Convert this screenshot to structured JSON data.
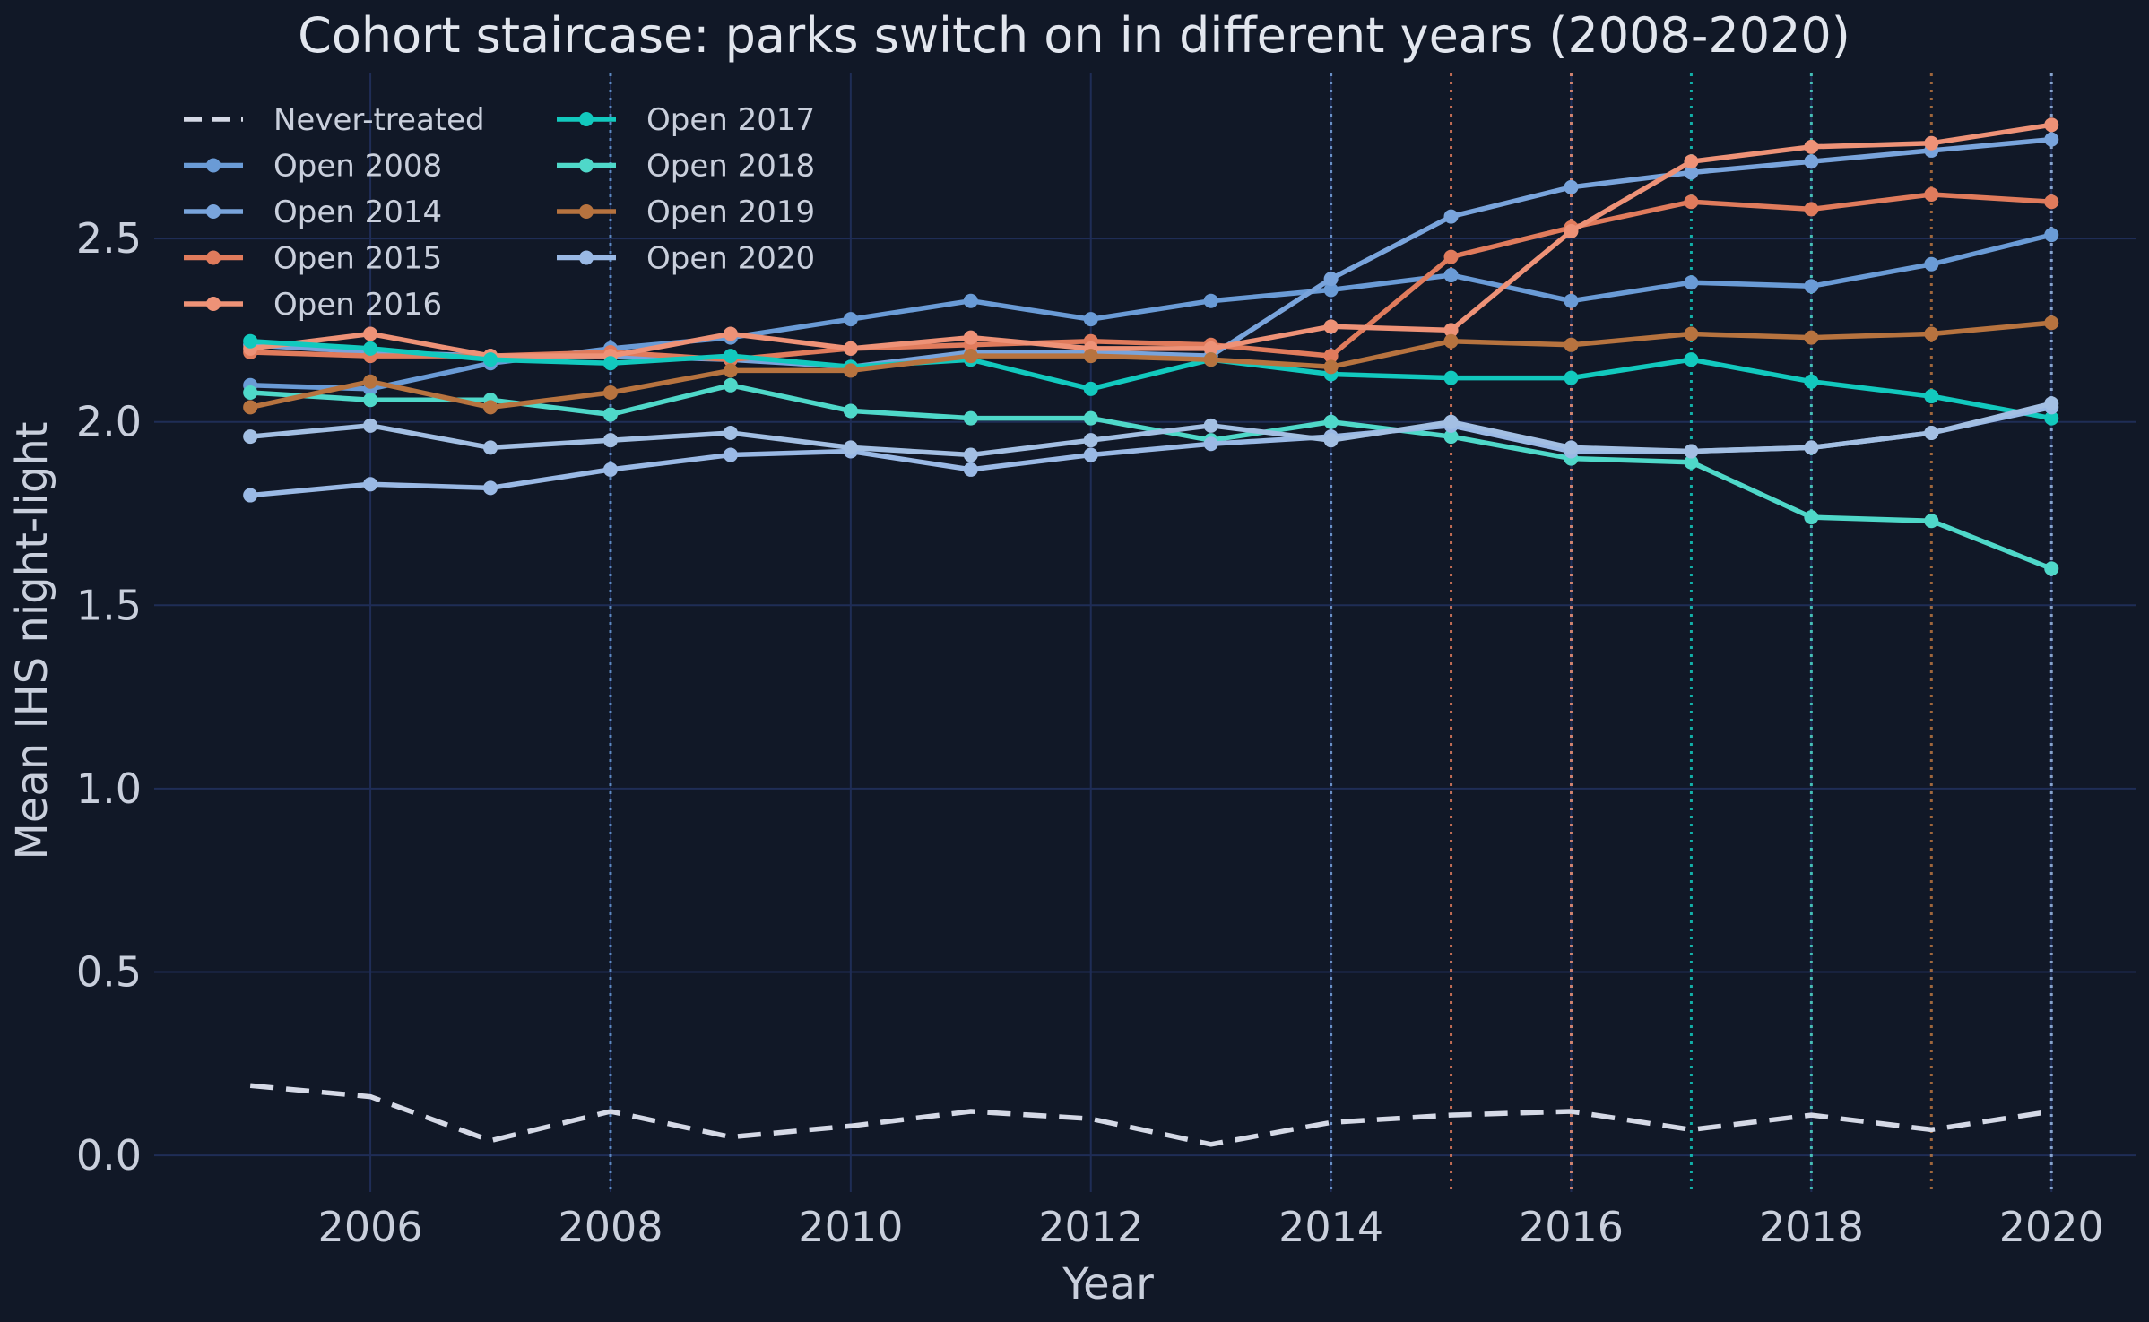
{
  "chart_data": {
    "type": "line",
    "title": "Cohort staircase: parks switch on in different years (2008-2020)",
    "xlabel": "Year",
    "ylabel": "Mean IHS night-light",
    "xlim": [
      2004.2,
      2020.7
    ],
    "ylim": [
      -0.1,
      2.95
    ],
    "xticks": [
      "2006",
      "2008",
      "2010",
      "2012",
      "2014",
      "2016",
      "2018",
      "2020"
    ],
    "yticks": [
      "0.0",
      "0.5",
      "1.0",
      "1.5",
      "2.0",
      "2.5"
    ],
    "grid": true,
    "legend_position": "top-left",
    "x": [
      2005,
      2006,
      2007,
      2008,
      2009,
      2010,
      2011,
      2012,
      2013,
      2014,
      2015,
      2016,
      2017,
      2018,
      2019,
      2020
    ],
    "series": [
      {
        "name": "Never-treated",
        "color": "#d5d9e6",
        "dashed": true,
        "markers": false,
        "open_year": null,
        "values": [
          0.19,
          0.16,
          0.04,
          0.12,
          0.05,
          0.08,
          0.12,
          0.1,
          0.03,
          0.09,
          0.11,
          0.12,
          0.07,
          0.11,
          0.07,
          0.12
        ]
      },
      {
        "name": "Open 2008",
        "color": "#6a9bd6",
        "dashed": false,
        "markers": true,
        "open_year": 2008,
        "values": [
          2.1,
          2.09,
          2.16,
          2.2,
          2.23,
          2.28,
          2.33,
          2.28,
          2.33,
          2.36,
          2.4,
          2.33,
          2.38,
          2.37,
          2.43,
          2.51
        ]
      },
      {
        "name": "Open 2014",
        "color": "#79a4dc",
        "dashed": false,
        "markers": true,
        "open_year": 2014,
        "values": [
          2.21,
          2.19,
          2.18,
          2.18,
          2.17,
          2.15,
          2.19,
          2.19,
          2.18,
          2.39,
          2.56,
          2.64,
          2.68,
          2.71,
          2.74,
          2.77
        ]
      },
      {
        "name": "Open 2015",
        "color": "#e07b5c",
        "dashed": false,
        "markers": true,
        "open_year": 2015,
        "values": [
          2.19,
          2.18,
          2.18,
          2.19,
          2.17,
          2.2,
          2.21,
          2.22,
          2.21,
          2.18,
          2.45,
          2.53,
          2.6,
          2.58,
          2.62,
          2.6
        ]
      },
      {
        "name": "Open 2016",
        "color": "#ee9277",
        "dashed": false,
        "markers": true,
        "open_year": 2016,
        "values": [
          2.2,
          2.24,
          2.18,
          2.18,
          2.24,
          2.2,
          2.23,
          2.2,
          2.2,
          2.26,
          2.25,
          2.52,
          2.71,
          2.75,
          2.76,
          2.81
        ]
      },
      {
        "name": "Open 2017",
        "color": "#12c9be",
        "dashed": false,
        "markers": true,
        "open_year": 2017,
        "values": [
          2.22,
          2.2,
          2.17,
          2.16,
          2.18,
          2.15,
          2.17,
          2.09,
          2.17,
          2.13,
          2.12,
          2.12,
          2.17,
          2.11,
          2.07,
          2.01
        ]
      },
      {
        "name": "Open 2018",
        "color": "#4fd8c9",
        "dashed": false,
        "markers": true,
        "open_year": 2018,
        "values": [
          2.08,
          2.06,
          2.06,
          2.02,
          2.1,
          2.03,
          2.01,
          2.01,
          1.95,
          2.0,
          1.96,
          1.9,
          1.89,
          1.74,
          1.73,
          1.6
        ]
      },
      {
        "name": "Open 2019",
        "color": "#b7733f",
        "dashed": false,
        "markers": true,
        "open_year": 2019,
        "values": [
          2.04,
          2.11,
          2.04,
          2.08,
          2.14,
          2.14,
          2.18,
          2.18,
          2.17,
          2.15,
          2.22,
          2.21,
          2.24,
          2.23,
          2.24,
          2.27
        ]
      },
      {
        "name": "Open 2020",
        "color": "#9ab9e5",
        "dashed": false,
        "markers": true,
        "open_year": 2020,
        "values": [
          1.8,
          1.83,
          1.82,
          1.87,
          1.91,
          1.92,
          1.87,
          1.91,
          1.94,
          1.96,
          1.99,
          1.92,
          1.92,
          1.93,
          1.97,
          2.04
        ]
      },
      {
        "name": "",
        "color": "#a3bfe3",
        "dashed": false,
        "markers": true,
        "open_year": null,
        "values": [
          1.96,
          1.99,
          1.93,
          1.95,
          1.97,
          1.93,
          1.91,
          1.95,
          1.99,
          1.95,
          2.0,
          1.93,
          1.92,
          1.93,
          1.97,
          2.05
        ]
      }
    ]
  }
}
